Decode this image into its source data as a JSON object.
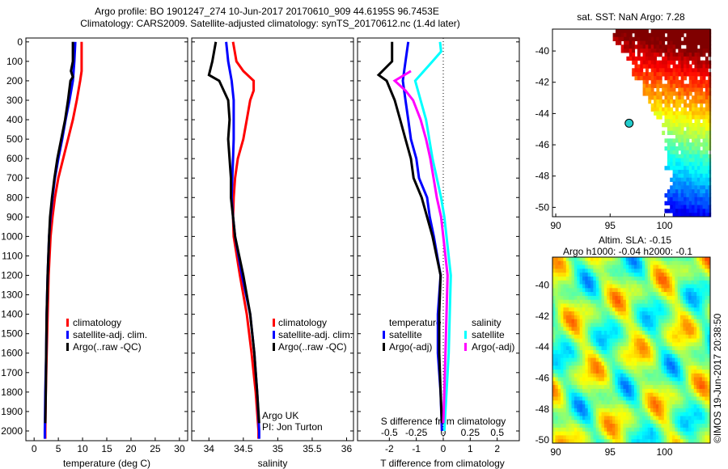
{
  "titles": {
    "line1": "Argo profile: BO 1901247_274 10-Jun-2017 20170610_909 44.6195S 96.7453E",
    "line2": "Climatology: CARS2009. Satellite-adjusted climatology: synTS_20170612.nc (1.4d later)"
  },
  "colors": {
    "climatology": "#ff0000",
    "satellite": "#0000ff",
    "argo": "#000000",
    "sal_satellite": "#00ffff",
    "sal_argo": "#ff00ff"
  },
  "copyright": "©IMOS 19-Jun-2017 20:38:50",
  "chart_data": [
    {
      "type": "line",
      "id": "temperature",
      "xlabel": "temperature (deg C)",
      "ylabel": "",
      "xlim": [
        -1.7,
        31.7
      ],
      "ylim": [
        2050,
        -20
      ],
      "xticks": [
        0,
        5,
        10,
        15,
        20,
        25,
        30
      ],
      "yticks": [
        0,
        100,
        200,
        300,
        400,
        500,
        600,
        700,
        800,
        900,
        1000,
        1100,
        1200,
        1300,
        1400,
        1500,
        1600,
        1700,
        1800,
        1900,
        2000
      ],
      "legend": {
        "placement": "lower-center",
        "entries": [
          "climatology",
          "satellite-adj. clim.",
          "Argo(..raw -QC)"
        ]
      },
      "series": [
        {
          "name": "climatology",
          "color": "#ff0000",
          "depth": [
            0,
            50,
            100,
            150,
            200,
            300,
            400,
            500,
            600,
            700,
            800,
            900,
            1000,
            1200,
            1400,
            1600,
            1800,
            2000,
            2040
          ],
          "values": [
            9.8,
            9.8,
            9.8,
            9.8,
            9.5,
            8.8,
            8.0,
            7.0,
            6.0,
            5.0,
            4.3,
            3.8,
            3.4,
            3.0,
            2.8,
            2.6,
            2.4,
            2.3,
            2.3
          ]
        },
        {
          "name": "satellite-adj. clim.",
          "color": "#0000ff",
          "depth": [
            0,
            100,
            200,
            300,
            400,
            500,
            600,
            700,
            800,
            900,
            1000,
            1200,
            1400,
            1600,
            1800,
            2000,
            2040
          ],
          "values": [
            8.5,
            8.3,
            8.0,
            7.3,
            6.5,
            5.8,
            5.0,
            4.3,
            3.8,
            3.4,
            3.1,
            2.8,
            2.6,
            2.5,
            2.3,
            2.2,
            2.2
          ]
        },
        {
          "name": "Argo(..raw -QC)",
          "color": "#000000",
          "depth": [
            0,
            100,
            150,
            180,
            200,
            300,
            400,
            500,
            600,
            700,
            800,
            900,
            1000,
            1200,
            1400,
            1600,
            1800,
            1960
          ],
          "values": [
            8.0,
            8.0,
            7.6,
            8.0,
            7.5,
            7.0,
            6.4,
            5.6,
            4.8,
            4.2,
            3.7,
            3.3,
            3.1,
            2.8,
            2.6,
            2.5,
            2.4,
            2.3
          ]
        }
      ]
    },
    {
      "type": "line",
      "id": "salinity",
      "xlabel": "salinity",
      "xlim": [
        33.75,
        36.1
      ],
      "ylim": [
        2050,
        -20
      ],
      "xticks": [
        34,
        34.5,
        35,
        35.5,
        36
      ],
      "legend": {
        "placement": "lower-center",
        "entries": [
          "climatology",
          "satellite-adj. clim.",
          "Argo(..raw -QC)"
        ]
      },
      "annotations": [
        "Argo UK",
        "PI: Jon Turton"
      ],
      "series": [
        {
          "name": "climatology",
          "color": "#ff0000",
          "depth": [
            0,
            100,
            150,
            200,
            250,
            300,
            400,
            500,
            600,
            700,
            800,
            900,
            1000,
            1200,
            1400,
            1600,
            1800,
            2000,
            2040
          ],
          "values": [
            34.35,
            34.4,
            34.5,
            34.65,
            34.65,
            34.6,
            34.55,
            34.5,
            34.42,
            34.38,
            34.36,
            34.35,
            34.36,
            34.45,
            34.55,
            34.62,
            34.68,
            34.72,
            34.72
          ]
        },
        {
          "name": "satellite-adj. clim.",
          "color": "#0000ff",
          "depth": [
            0,
            100,
            200,
            300,
            400,
            500,
            600,
            700,
            800,
            900,
            1000,
            1200,
            1400,
            1600,
            1800,
            2000,
            2040
          ],
          "values": [
            34.25,
            34.28,
            34.33,
            34.36,
            34.36,
            34.36,
            34.35,
            34.34,
            34.33,
            34.35,
            34.38,
            34.48,
            34.6,
            34.66,
            34.7,
            34.73,
            34.73
          ]
        },
        {
          "name": "Argo(..raw -QC)",
          "color": "#000000",
          "depth": [
            0,
            100,
            170,
            200,
            300,
            400,
            500,
            600,
            700,
            800,
            900,
            1000,
            1200,
            1400,
            1600,
            1800,
            1960
          ],
          "values": [
            34.1,
            34.05,
            34.0,
            34.15,
            34.28,
            34.3,
            34.28,
            34.3,
            34.32,
            34.32,
            34.35,
            34.38,
            34.5,
            34.6,
            34.66,
            34.7,
            34.73
          ]
        }
      ]
    },
    {
      "type": "line",
      "id": "differences",
      "xlabel": "T difference from climatology",
      "xlabel2": "S difference from climatology",
      "xlim": [
        -3.18,
        2.82
      ],
      "ylim": [
        2050,
        -20
      ],
      "xticks": [
        -2,
        -1,
        0,
        1,
        2
      ],
      "xtick_labels": [
        "-2",
        "-1",
        "0",
        "1",
        "2"
      ],
      "s_xticks": [
        -0.5,
        -0.25,
        0,
        0.25,
        0.5
      ],
      "s_xtick_labels": [
        "-0.5",
        "-0.25",
        "0",
        "0.25",
        "0.5"
      ],
      "s_to_t_scale": 4,
      "legend": {
        "placement": "lower-center",
        "temperature_title": "temperature",
        "salinity_title": "salinity",
        "entries": [
          "satellite",
          "Argo(-adj)",
          "satellite",
          "Argo(-adj)"
        ]
      },
      "series": [
        {
          "name": "T satellite",
          "color": "#0000ff",
          "var": "T",
          "depth": [
            0,
            100,
            200,
            300,
            400,
            500,
            600,
            700,
            800,
            900,
            1000,
            1200,
            1400,
            1600,
            1800,
            2000
          ],
          "values": [
            -1.3,
            -1.4,
            -1.5,
            -1.4,
            -1.3,
            -1.2,
            -1.0,
            -0.9,
            -0.6,
            -0.5,
            -0.35,
            -0.1,
            -0.2,
            -0.2,
            -0.1,
            -0.05
          ]
        },
        {
          "name": "T Argo(-adj)",
          "color": "#000000",
          "var": "T",
          "depth": [
            0,
            100,
            170,
            200,
            300,
            400,
            500,
            600,
            700,
            800,
            900,
            1000,
            1200,
            1400,
            1600,
            1800,
            1960
          ],
          "values": [
            -1.9,
            -1.9,
            -2.4,
            -2.1,
            -1.8,
            -1.6,
            -1.4,
            -1.2,
            -1.1,
            -0.8,
            -0.6,
            -0.4,
            -0.1,
            -0.15,
            -0.15,
            -0.1,
            -0.05
          ]
        },
        {
          "name": "S satellite",
          "color": "#00ffff",
          "var": "S",
          "depth": [
            0,
            50,
            100,
            200,
            300,
            400,
            500,
            600,
            700,
            800,
            900,
            1000,
            1200,
            1400,
            1600,
            1800,
            2000
          ],
          "values": [
            -0.03,
            -0.02,
            -0.1,
            -0.26,
            -0.21,
            -0.16,
            -0.13,
            -0.1,
            -0.06,
            -0.02,
            0.01,
            0.03,
            0.07,
            0.06,
            0.05,
            0.03,
            0.01
          ]
        },
        {
          "name": "S Argo(-adj)",
          "color": "#ff00ff",
          "var": "S",
          "depth": [
            150,
            200,
            250,
            300,
            400,
            500,
            600,
            700,
            800,
            900,
            1000,
            1200,
            1400,
            1600,
            1800,
            1960
          ],
          "values": [
            -0.3,
            -0.45,
            -0.35,
            -0.28,
            -0.21,
            -0.16,
            -0.12,
            -0.09,
            -0.06,
            -0.02,
            0.0,
            0.04,
            0.03,
            0.02,
            0.01,
            0.0
          ]
        }
      ]
    },
    {
      "type": "heatmap",
      "id": "sst_map",
      "title": "sat. SST: NaN Argo: 7.28",
      "xlim": [
        89.7,
        104.2
      ],
      "ylim": [
        -50.6,
        -38.6
      ],
      "xticks": [
        90,
        95,
        100
      ],
      "yticks": [
        -40,
        -42,
        -44,
        -46,
        -48,
        -50
      ],
      "argo_position": {
        "lon": 96.7453,
        "lat": -44.6195
      }
    },
    {
      "type": "heatmap",
      "id": "sla_map",
      "title": "Altim. SLA: -0.15",
      "subtitle": "Argo h1000: -0.04 h2000: -0.1",
      "xlim": [
        89.7,
        104.2
      ],
      "ylim": [
        -50.2,
        -38.2
      ],
      "xticks": [
        90,
        95,
        100
      ],
      "yticks": [
        -40,
        -42,
        -44,
        -46,
        -48,
        -50
      ]
    }
  ]
}
